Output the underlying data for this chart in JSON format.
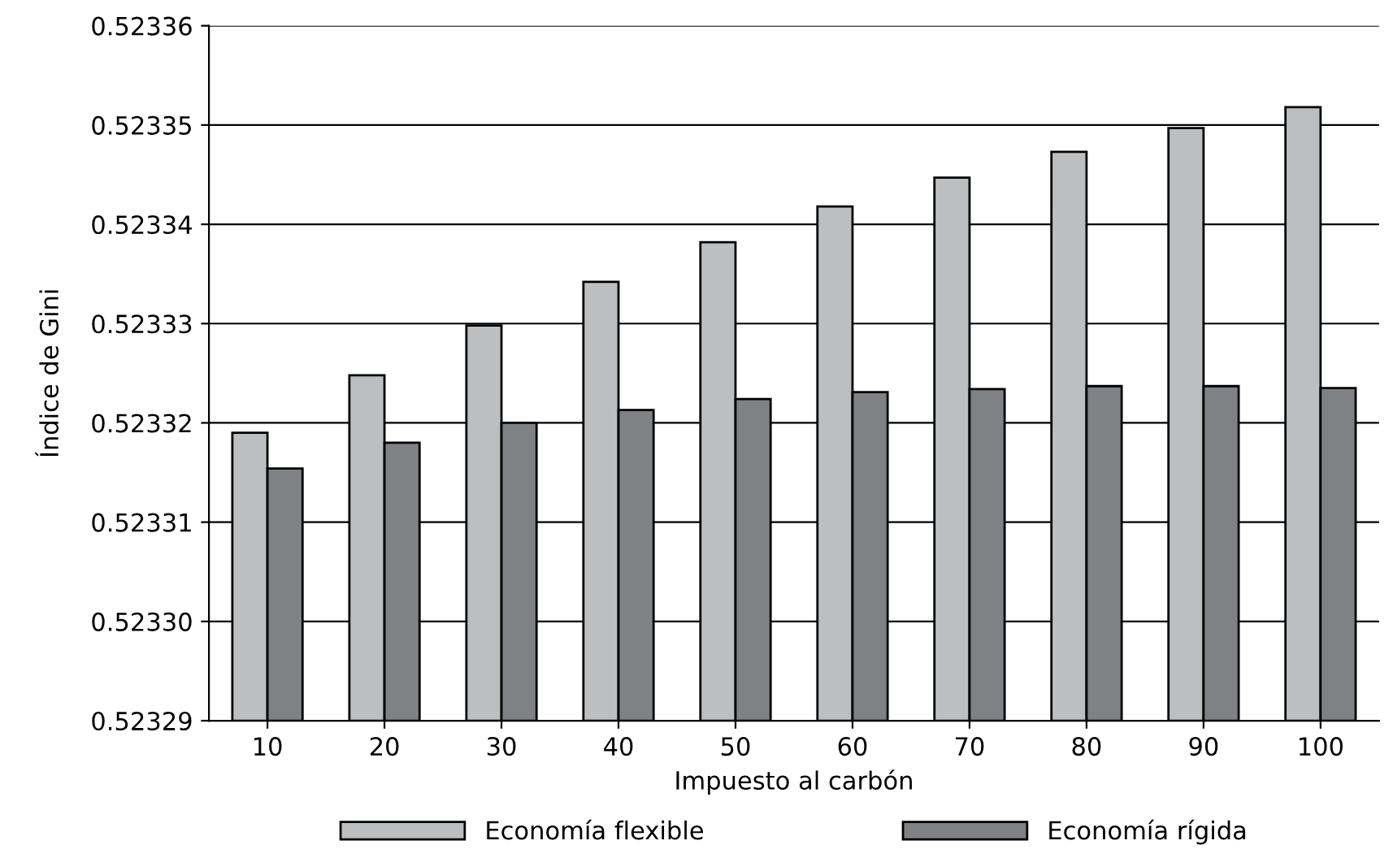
{
  "chart_data": {
    "type": "bar",
    "xlabel": "Impuesto al carbón",
    "ylabel": "Índice de Gini",
    "categories": [
      "10",
      "20",
      "30",
      "40",
      "50",
      "60",
      "70",
      "80",
      "90",
      "100"
    ],
    "series": [
      {
        "name": "Economía flexible",
        "color": "#bdbec0",
        "values": [
          0.523319,
          0.5233248,
          0.5233298,
          0.5233342,
          0.5233382,
          0.5233418,
          0.5233447,
          0.5233473,
          0.5233497,
          0.5233518
        ]
      },
      {
        "name": "Economía rígida",
        "color": "#808184",
        "values": [
          0.5233154,
          0.523318,
          0.52332,
          0.5233213,
          0.5233224,
          0.5233231,
          0.5233234,
          0.5233237,
          0.5233237,
          0.5233235
        ]
      }
    ],
    "ylim": [
      0.52329,
      0.52336
    ],
    "yticks": [
      0.52329,
      {
        "value": 0.5233,
        "label": "0.52330"
      },
      0.52331,
      0.52332,
      0.52333,
      0.52334,
      0.52335,
      0.52336
    ],
    "grid": "y",
    "legend": "bottom"
  }
}
